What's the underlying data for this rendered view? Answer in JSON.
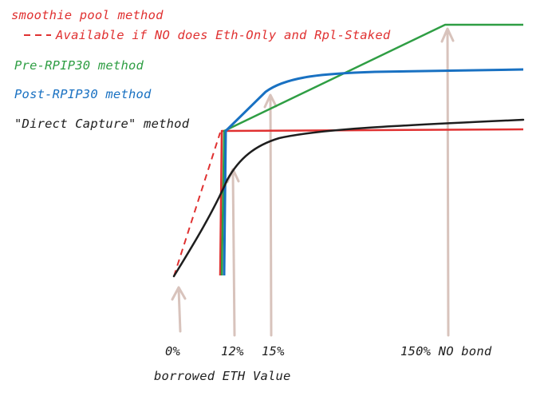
{
  "legend": {
    "smoothie": {
      "label": "smoothie pool method",
      "color": "#e03131"
    },
    "available": {
      "label": "Available if NO does Eth-Only and Rpl-Staked",
      "color": "#e03131"
    },
    "pre_rpip": {
      "label": "Pre-RPIP30 method",
      "color": "#2f9e44"
    },
    "post_rpip": {
      "label": "Post-RPIP30 method",
      "color": "#1971c2"
    },
    "direct": {
      "label": "\"Direct Capture\" method",
      "color": "#1e1e1e"
    }
  },
  "axis": {
    "labels": {
      "zero": "0%",
      "twelve": "12%",
      "fifteen": "15%",
      "onefifty": "150% NO bond",
      "xlabel": "borrowed ETH Value"
    },
    "arrow_color": "#d8c3bc"
  }
}
